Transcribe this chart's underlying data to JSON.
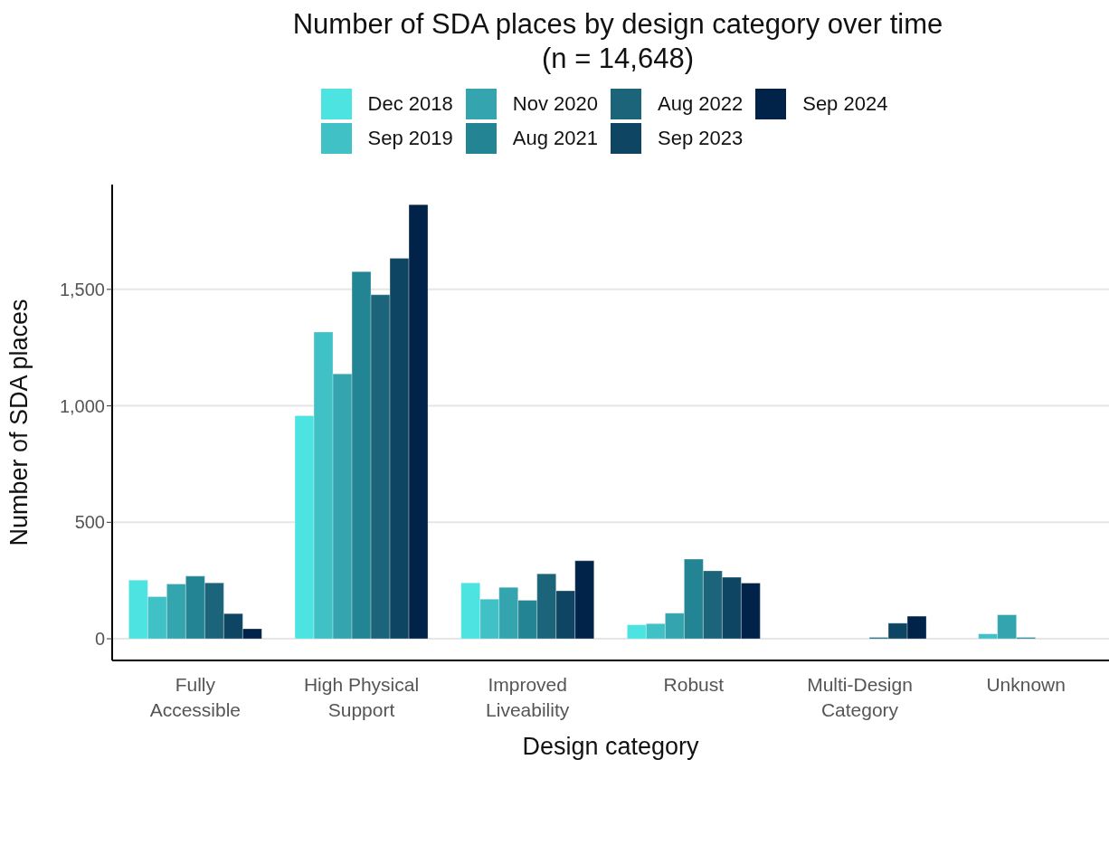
{
  "chart_data": {
    "type": "bar",
    "title": "Number of SDA places by design category over time\n(n = 14,648)",
    "xlabel": "Design category",
    "ylabel": "Number of SDA places",
    "categories": [
      "Fully Accessible",
      "High Physical Support",
      "Improved Liveability",
      "Robust",
      "Multi-Design Category",
      "Unknown"
    ],
    "series": [
      {
        "name": "Dec 2018",
        "color": "#4de3e0",
        "values": [
          252,
          958,
          240,
          60,
          null,
          null
        ]
      },
      {
        "name": "Sep 2019",
        "color": "#3fc1c6",
        "values": [
          181,
          1317,
          170,
          65,
          null,
          21
        ]
      },
      {
        "name": "Nov 2020",
        "color": "#34a5ae",
        "values": [
          235,
          1137,
          221,
          110,
          null,
          103
        ]
      },
      {
        "name": "Aug 2021",
        "color": "#238593",
        "values": [
          269,
          1576,
          165,
          342,
          null,
          6
        ]
      },
      {
        "name": "Aug 2022",
        "color": "#1b6479",
        "values": [
          240,
          1477,
          279,
          292,
          6,
          null
        ]
      },
      {
        "name": "Sep 2023",
        "color": "#0e4562",
        "values": [
          108,
          1633,
          206,
          264,
          67,
          null
        ]
      },
      {
        "name": "Sep 2024",
        "color": "#022349",
        "values": [
          43,
          1864,
          335,
          239,
          97,
          null
        ]
      }
    ],
    "ylim": [
      -93,
      1950
    ],
    "yticks": [
      0,
      500,
      {
        "value": 1000,
        "label": "1,000"
      },
      {
        "value": 1500,
        "label": "1,500"
      }
    ],
    "grid": "y",
    "legend": "top"
  }
}
